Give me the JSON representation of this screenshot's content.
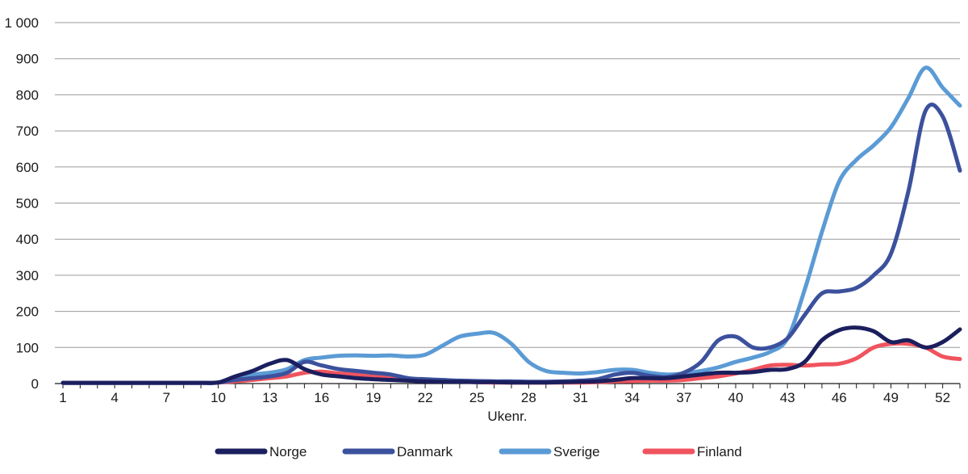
{
  "chart_data": {
    "type": "line",
    "title": "",
    "xlabel": "Ukenr.",
    "ylabel": "",
    "ylim": [
      0,
      1000
    ],
    "xlim": [
      1,
      53
    ],
    "grid": true,
    "legend_position": "bottom",
    "y_ticks": [
      0,
      100,
      200,
      300,
      400,
      500,
      600,
      700,
      800,
      900,
      1000
    ],
    "y_tick_labels": [
      "0",
      "100",
      "200",
      "300",
      "400",
      "500",
      "600",
      "700",
      "800",
      "900",
      "1 000"
    ],
    "x_ticks": [
      1,
      4,
      7,
      10,
      13,
      16,
      19,
      22,
      25,
      28,
      31,
      34,
      37,
      40,
      43,
      46,
      49,
      52
    ],
    "x_tick_labels": [
      "1",
      "4",
      "7",
      "10",
      "13",
      "16",
      "19",
      "22",
      "25",
      "28",
      "31",
      "34",
      "37",
      "40",
      "43",
      "46",
      "49",
      "52"
    ],
    "x": [
      1,
      2,
      3,
      4,
      5,
      6,
      7,
      8,
      9,
      10,
      11,
      12,
      13,
      14,
      15,
      16,
      17,
      18,
      19,
      20,
      21,
      22,
      23,
      24,
      25,
      26,
      27,
      28,
      29,
      30,
      31,
      32,
      33,
      34,
      35,
      36,
      37,
      38,
      39,
      40,
      41,
      42,
      43,
      44,
      45,
      46,
      47,
      48,
      49,
      50,
      51,
      52,
      53
    ],
    "series": [
      {
        "name": "Norge",
        "color": "#1b1f5e",
        "values": [
          2,
          2,
          2,
          2,
          2,
          2,
          2,
          2,
          2,
          3,
          20,
          35,
          55,
          65,
          40,
          25,
          20,
          15,
          12,
          10,
          8,
          6,
          5,
          5,
          4,
          4,
          3,
          3,
          3,
          4,
          5,
          6,
          10,
          15,
          15,
          15,
          20,
          25,
          30,
          30,
          32,
          38,
          40,
          60,
          120,
          148,
          155,
          145,
          115,
          120,
          100,
          115,
          150
        ]
      },
      {
        "name": "Danmark",
        "color": "#3c519d",
        "values": [
          2,
          2,
          2,
          2,
          2,
          2,
          2,
          2,
          2,
          3,
          10,
          15,
          20,
          30,
          60,
          50,
          40,
          35,
          30,
          25,
          15,
          12,
          10,
          8,
          7,
          6,
          6,
          5,
          5,
          6,
          8,
          12,
          25,
          30,
          22,
          18,
          30,
          60,
          120,
          130,
          100,
          100,
          125,
          190,
          250,
          255,
          265,
          300,
          360,
          530,
          755,
          740,
          590
        ]
      },
      {
        "name": "Sverige",
        "color": "#5b9bd5",
        "values": [
          2,
          2,
          2,
          2,
          2,
          2,
          2,
          2,
          2,
          3,
          15,
          25,
          30,
          40,
          65,
          72,
          77,
          78,
          77,
          78,
          75,
          80,
          105,
          130,
          138,
          140,
          110,
          60,
          35,
          30,
          28,
          32,
          38,
          38,
          30,
          25,
          28,
          35,
          45,
          60,
          72,
          88,
          125,
          260,
          420,
          560,
          620,
          660,
          710,
          790,
          875,
          820,
          770
        ]
      },
      {
        "name": "Finland",
        "color": "#f0545e",
        "values": [
          2,
          2,
          2,
          2,
          2,
          2,
          2,
          2,
          2,
          3,
          6,
          10,
          15,
          20,
          30,
          33,
          28,
          25,
          22,
          18,
          12,
          10,
          8,
          6,
          4,
          3,
          3,
          3,
          3,
          3,
          3,
          4,
          6,
          7,
          8,
          8,
          10,
          15,
          20,
          28,
          38,
          50,
          52,
          50,
          53,
          55,
          70,
          100,
          110,
          110,
          100,
          75,
          68
        ]
      }
    ]
  }
}
